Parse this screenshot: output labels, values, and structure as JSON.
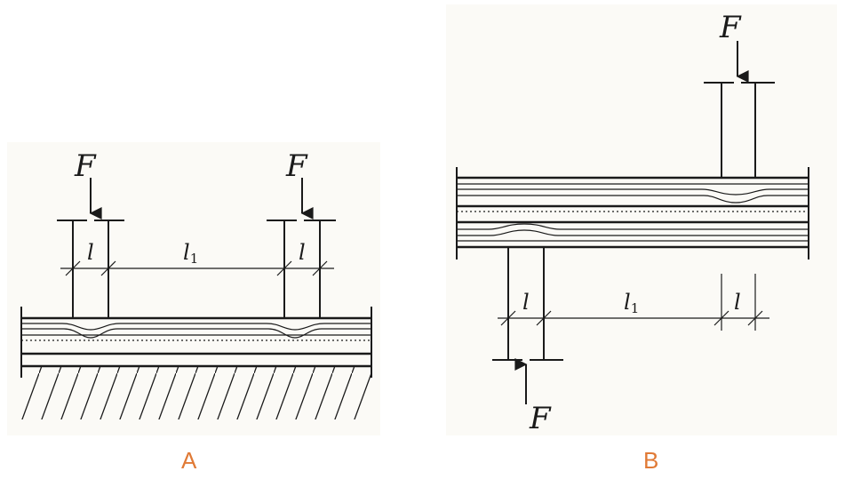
{
  "panels": [
    {
      "id": "A",
      "label": "A",
      "force_left": "F",
      "force_right": "F",
      "dim_left": "l",
      "dim_mid": "l",
      "dim_mid_sub": "1",
      "dim_right": "l"
    },
    {
      "id": "B",
      "label": "B",
      "force_top": "F",
      "force_bottom": "F",
      "dim_left": "l",
      "dim_mid": "l",
      "dim_mid_sub": "1",
      "dim_right": "l"
    }
  ],
  "colors": {
    "line": "#1a1a1a",
    "panel_bg": "#fbfaf6",
    "panel_label": "#e07a36"
  },
  "icons": [
    "arrow-down-icon",
    "arrow-up-icon",
    "hatching-ground-icon"
  ]
}
